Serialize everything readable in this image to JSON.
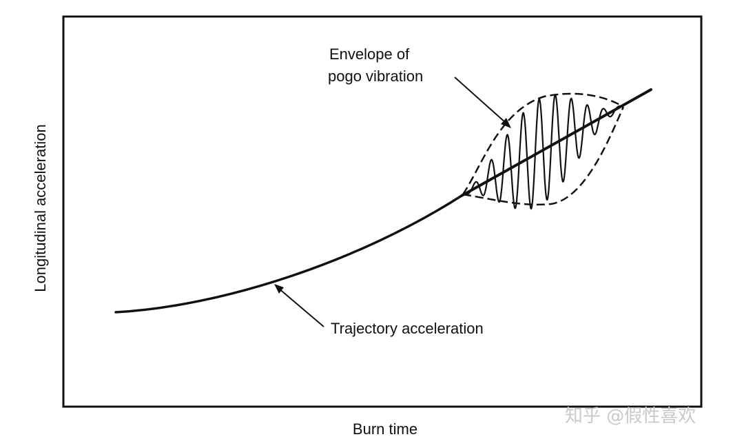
{
  "diagram": {
    "x_axis_label": "Burn time",
    "y_axis_label": "Longitudinal acceleration",
    "annotations": {
      "envelope_line1": "Envelope of",
      "envelope_line2": "pogo vibration",
      "trajectory": "Trajectory acceleration"
    }
  },
  "watermark": {
    "text": "知乎 @假性喜欢"
  },
  "colors": {
    "ink": "#111111",
    "background": "#ffffff",
    "watermark": "#c9c9c9"
  }
}
